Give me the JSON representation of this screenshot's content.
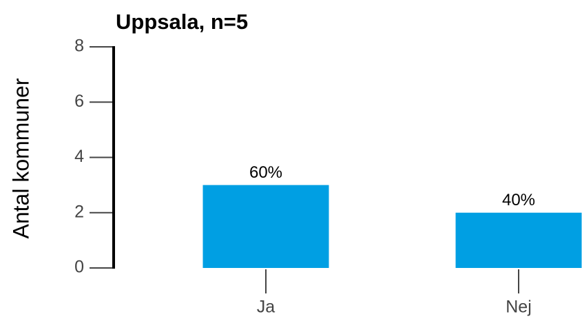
{
  "chart_data": {
    "type": "bar",
    "title": "Uppsala, n=5",
    "y_label": "Antal kommuner",
    "categories": [
      "Ja",
      "Nej"
    ],
    "values": [
      3,
      2
    ],
    "value_labels": [
      "60%",
      "40%"
    ],
    "color": "#009fe3",
    "ylim": [
      0,
      8
    ],
    "yticks": [
      0,
      2,
      4,
      6,
      8
    ]
  }
}
